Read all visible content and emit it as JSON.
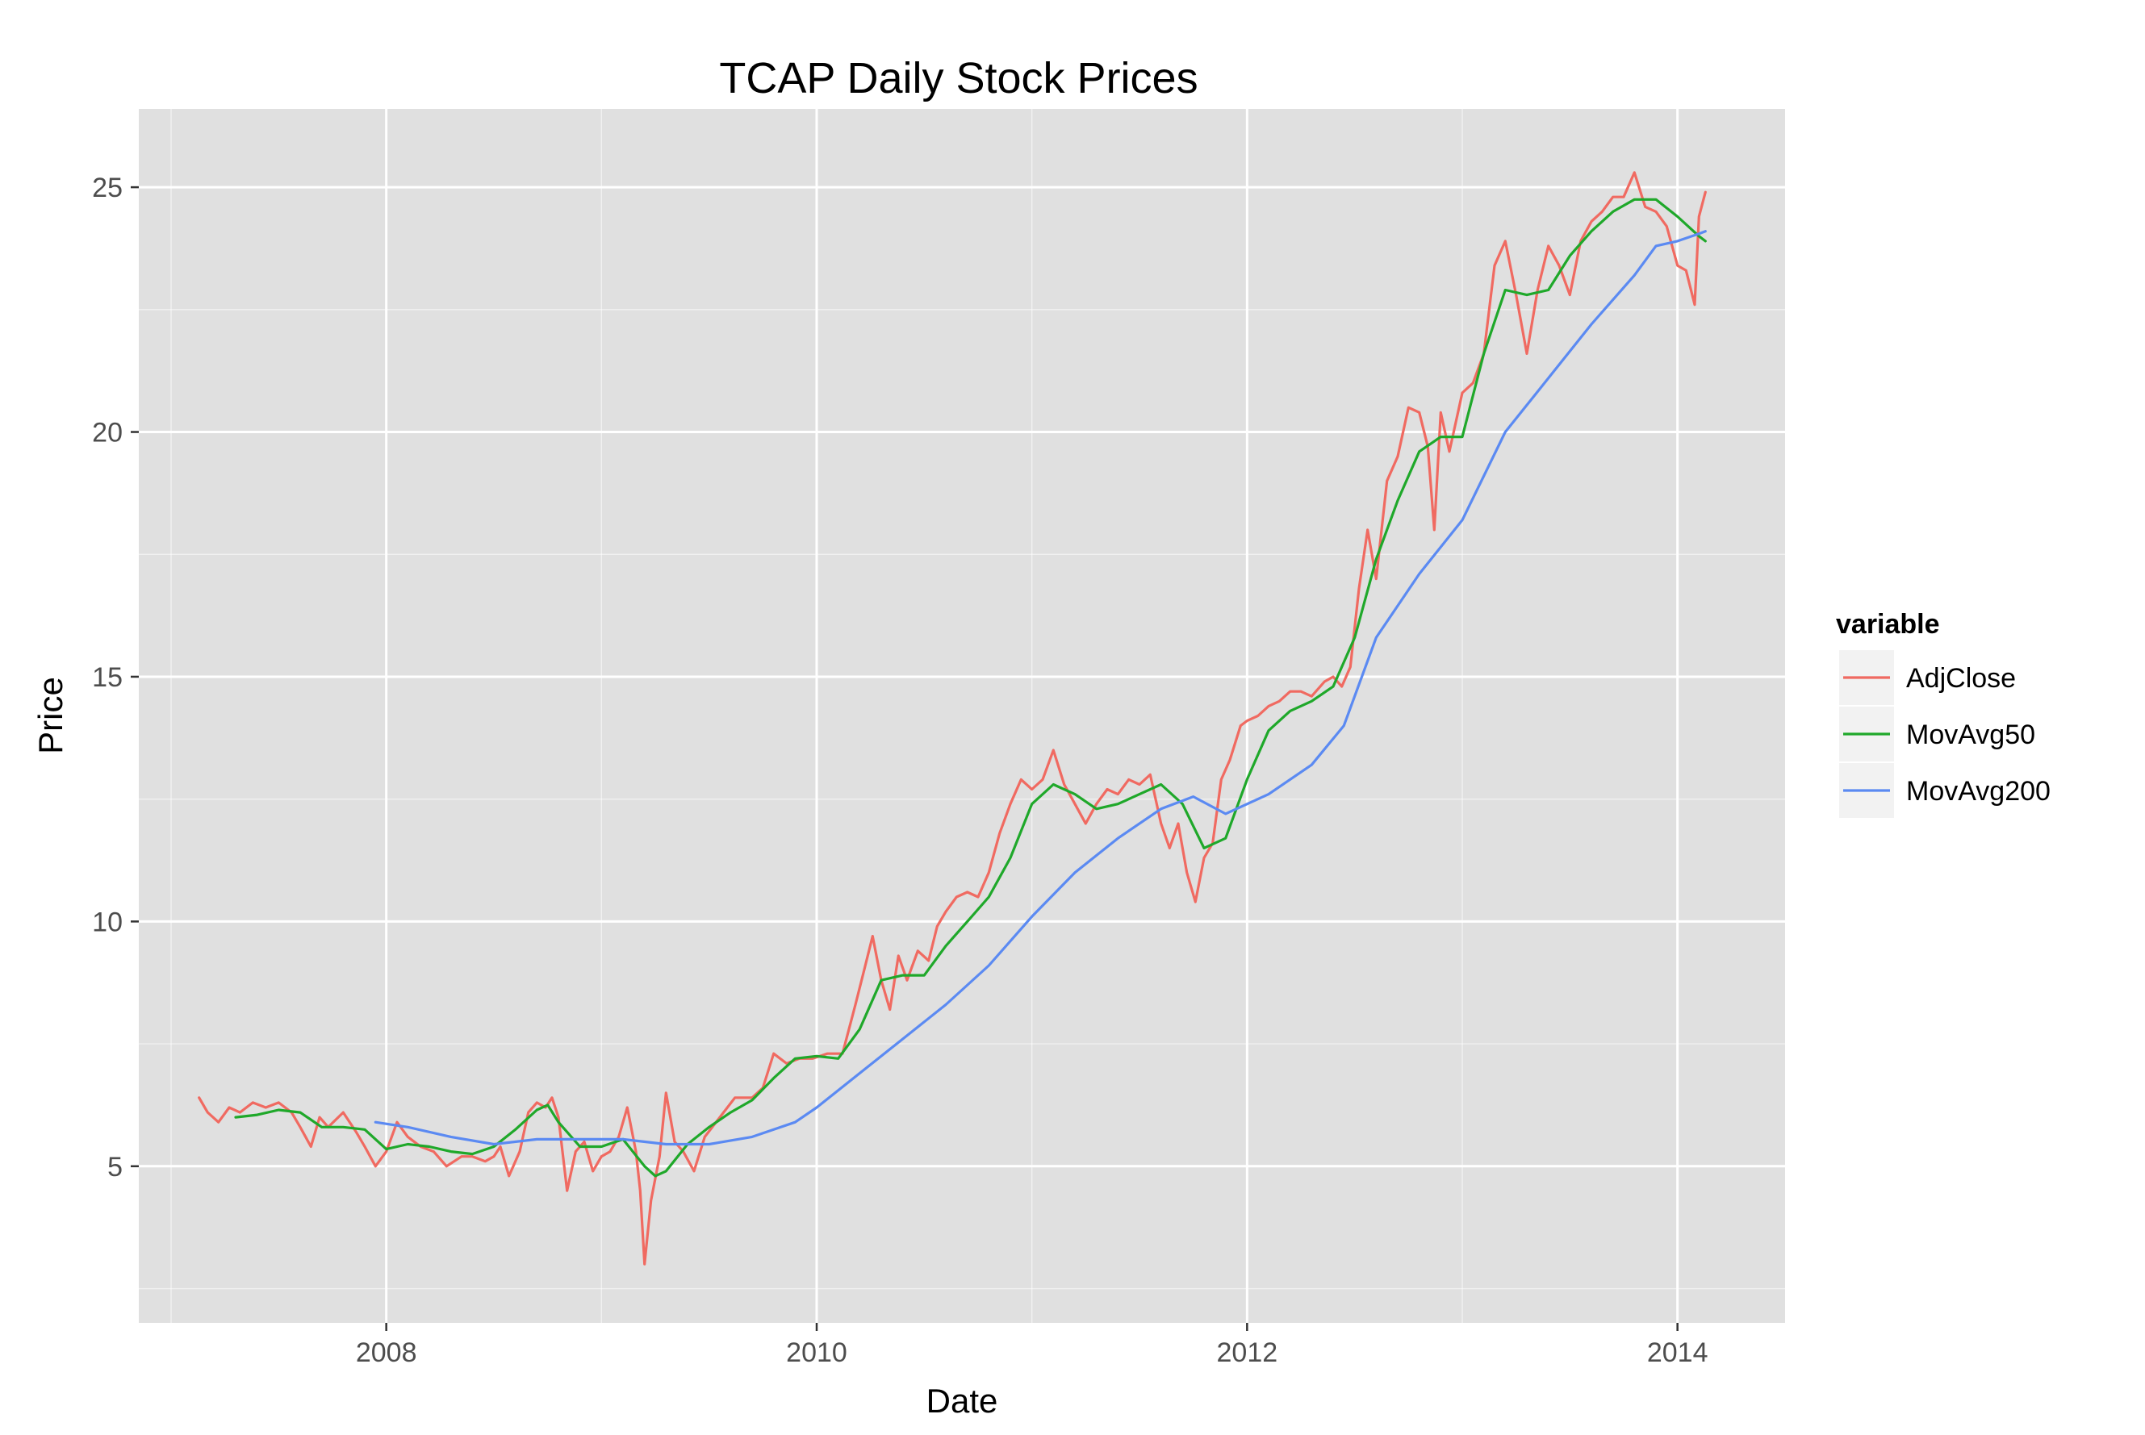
{
  "chart_data": {
    "type": "line",
    "title": "TCAP Daily Stock Prices",
    "xlabel": "Date",
    "ylabel": "Price",
    "xlim": [
      2006.85,
      2014.5
    ],
    "ylim": [
      1.8,
      26.6
    ],
    "x_ticks": [
      2008,
      2010,
      2012,
      2014
    ],
    "x_tick_labels": [
      "2008",
      "2010",
      "2012",
      "2014"
    ],
    "y_ticks": [
      5,
      10,
      15,
      20,
      25
    ],
    "y_tick_labels": [
      "5",
      "10",
      "15",
      "20",
      "25"
    ],
    "grid": true,
    "legend": {
      "title": "variable",
      "position": "right"
    },
    "colors": {
      "panel": "#e0e0e0",
      "grid": "#ffffff",
      "AdjClose": "#f06a61",
      "MovAvg50": "#1fa82a",
      "MovAvg200": "#5b8af2"
    },
    "series": [
      {
        "name": "AdjClose",
        "color": "#f06a61",
        "x": [
          2007.13,
          2007.17,
          2007.22,
          2007.27,
          2007.32,
          2007.38,
          2007.44,
          2007.5,
          2007.56,
          2007.6,
          2007.65,
          2007.69,
          2007.73,
          2007.8,
          2007.86,
          2007.9,
          2007.95,
          2008.0,
          2008.05,
          2008.1,
          2008.16,
          2008.22,
          2008.28,
          2008.35,
          2008.4,
          2008.46,
          2008.5,
          2008.53,
          2008.57,
          2008.62,
          2008.66,
          2008.7,
          2008.74,
          2008.77,
          2008.8,
          2008.84,
          2008.88,
          2008.92,
          2008.96,
          2009.0,
          2009.04,
          2009.08,
          2009.12,
          2009.16,
          2009.18,
          2009.2,
          2009.23,
          2009.27,
          2009.3,
          2009.34,
          2009.38,
          2009.43,
          2009.48,
          2009.55,
          2009.62,
          2009.7,
          2009.75,
          2009.8,
          2009.86,
          2009.92,
          2009.98,
          2010.05,
          2010.12,
          2010.18,
          2010.22,
          2010.26,
          2010.3,
          2010.34,
          2010.38,
          2010.42,
          2010.47,
          2010.52,
          2010.56,
          2010.6,
          2010.65,
          2010.7,
          2010.75,
          2010.8,
          2010.85,
          2010.9,
          2010.95,
          2011.0,
          2011.05,
          2011.1,
          2011.15,
          2011.2,
          2011.25,
          2011.3,
          2011.35,
          2011.4,
          2011.45,
          2011.5,
          2011.55,
          2011.6,
          2011.64,
          2011.68,
          2011.72,
          2011.76,
          2011.8,
          2011.84,
          2011.88,
          2011.92,
          2011.97,
          2012.0,
          2012.05,
          2012.1,
          2012.15,
          2012.2,
          2012.25,
          2012.3,
          2012.36,
          2012.4,
          2012.44,
          2012.48,
          2012.52,
          2012.56,
          2012.6,
          2012.65,
          2012.7,
          2012.75,
          2012.8,
          2012.84,
          2012.87,
          2012.9,
          2012.94,
          2013.0,
          2013.05,
          2013.1,
          2013.15,
          2013.2,
          2013.25,
          2013.3,
          2013.35,
          2013.4,
          2013.45,
          2013.5,
          2013.55,
          2013.6,
          2013.65,
          2013.7,
          2013.75,
          2013.8,
          2013.85,
          2013.9,
          2013.95,
          2014.0,
          2014.04,
          2014.08,
          2014.1,
          2014.13
        ],
        "y": [
          6.4,
          6.1,
          5.9,
          6.2,
          6.1,
          6.3,
          6.2,
          6.3,
          6.1,
          5.8,
          5.4,
          6.0,
          5.8,
          6.1,
          5.7,
          5.4,
          5.0,
          5.3,
          5.9,
          5.6,
          5.4,
          5.3,
          5.0,
          5.2,
          5.2,
          5.1,
          5.2,
          5.4,
          4.8,
          5.3,
          6.1,
          6.3,
          6.2,
          6.4,
          6.0,
          4.5,
          5.3,
          5.5,
          4.9,
          5.2,
          5.3,
          5.6,
          6.2,
          5.3,
          4.5,
          3.0,
          4.3,
          5.2,
          6.5,
          5.5,
          5.3,
          4.9,
          5.6,
          6.0,
          6.4,
          6.4,
          6.6,
          7.3,
          7.1,
          7.2,
          7.2,
          7.3,
          7.3,
          8.3,
          9.0,
          9.7,
          8.8,
          8.2,
          9.3,
          8.8,
          9.4,
          9.2,
          9.9,
          10.2,
          10.5,
          10.6,
          10.5,
          11.0,
          11.8,
          12.4,
          12.9,
          12.7,
          12.9,
          13.5,
          12.8,
          12.4,
          12.0,
          12.4,
          12.7,
          12.6,
          12.9,
          12.8,
          13.0,
          12.0,
          11.5,
          12.0,
          11.0,
          10.4,
          11.3,
          11.6,
          12.9,
          13.3,
          14.0,
          14.1,
          14.2,
          14.4,
          14.5,
          14.7,
          14.7,
          14.6,
          14.9,
          15.0,
          14.8,
          15.2,
          16.8,
          18.0,
          17.0,
          19.0,
          19.5,
          20.5,
          20.4,
          19.7,
          18.0,
          20.4,
          19.6,
          20.8,
          21.0,
          21.6,
          23.4,
          23.9,
          22.8,
          21.6,
          22.9,
          23.8,
          23.4,
          22.8,
          23.9,
          24.3,
          24.5,
          24.8,
          24.8,
          25.3,
          24.6,
          24.5,
          24.2,
          23.4,
          23.3,
          22.6,
          24.4,
          24.9
        ]
      },
      {
        "name": "MovAvg50",
        "color": "#1fa82a",
        "x": [
          2007.3,
          2007.4,
          2007.5,
          2007.6,
          2007.7,
          2007.8,
          2007.9,
          2008.0,
          2008.1,
          2008.2,
          2008.3,
          2008.4,
          2008.5,
          2008.6,
          2008.7,
          2008.75,
          2008.8,
          2008.9,
          2009.0,
          2009.1,
          2009.2,
          2009.25,
          2009.3,
          2009.4,
          2009.5,
          2009.6,
          2009.7,
          2009.8,
          2009.9,
          2010.0,
          2010.1,
          2010.2,
          2010.3,
          2010.4,
          2010.5,
          2010.6,
          2010.7,
          2010.8,
          2010.9,
          2011.0,
          2011.1,
          2011.2,
          2011.3,
          2011.4,
          2011.5,
          2011.6,
          2011.7,
          2011.8,
          2011.9,
          2012.0,
          2012.1,
          2012.2,
          2012.3,
          2012.4,
          2012.5,
          2012.6,
          2012.7,
          2012.8,
          2012.9,
          2013.0,
          2013.1,
          2013.2,
          2013.3,
          2013.4,
          2013.5,
          2013.6,
          2013.7,
          2013.8,
          2013.9,
          2014.0,
          2014.1,
          2014.13
        ],
        "y": [
          6.0,
          6.05,
          6.15,
          6.1,
          5.8,
          5.8,
          5.75,
          5.35,
          5.45,
          5.4,
          5.3,
          5.25,
          5.4,
          5.75,
          6.15,
          6.25,
          5.9,
          5.4,
          5.4,
          5.55,
          5.0,
          4.8,
          4.9,
          5.45,
          5.8,
          6.1,
          6.35,
          6.8,
          7.2,
          7.25,
          7.2,
          7.8,
          8.8,
          8.9,
          8.9,
          9.5,
          10.0,
          10.5,
          11.3,
          12.4,
          12.8,
          12.6,
          12.3,
          12.4,
          12.6,
          12.8,
          12.4,
          11.5,
          11.7,
          12.9,
          13.9,
          14.3,
          14.5,
          14.8,
          15.8,
          17.4,
          18.6,
          19.6,
          19.9,
          19.9,
          21.6,
          22.9,
          22.8,
          22.9,
          23.6,
          24.1,
          24.5,
          24.75,
          24.75,
          24.4,
          24.0,
          23.9
        ]
      },
      {
        "name": "MovAvg200",
        "color": "#5b8af2",
        "x": [
          2007.95,
          2008.1,
          2008.3,
          2008.5,
          2008.7,
          2008.9,
          2009.1,
          2009.3,
          2009.5,
          2009.7,
          2009.9,
          2010.0,
          2010.2,
          2010.4,
          2010.6,
          2010.8,
          2011.0,
          2011.2,
          2011.4,
          2011.6,
          2011.75,
          2011.9,
          2012.1,
          2012.3,
          2012.45,
          2012.6,
          2012.8,
          2013.0,
          2013.2,
          2013.4,
          2013.6,
          2013.8,
          2013.9,
          2014.0,
          2014.1,
          2014.13
        ],
        "y": [
          5.9,
          5.8,
          5.6,
          5.45,
          5.55,
          5.55,
          5.55,
          5.45,
          5.45,
          5.6,
          5.9,
          6.2,
          6.9,
          7.6,
          8.3,
          9.1,
          10.1,
          11.0,
          11.7,
          12.3,
          12.55,
          12.2,
          12.6,
          13.2,
          14.0,
          15.8,
          17.1,
          18.2,
          20.0,
          21.1,
          22.2,
          23.2,
          23.8,
          23.9,
          24.05,
          24.1
        ]
      }
    ]
  }
}
